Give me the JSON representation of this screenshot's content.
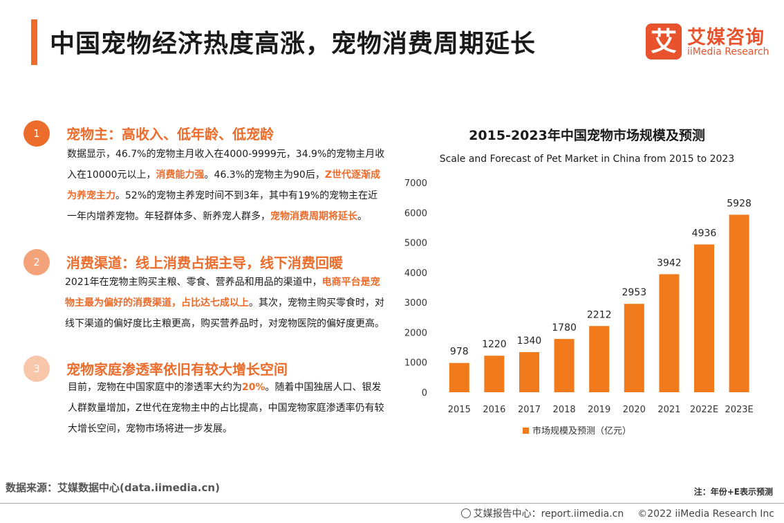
{
  "header": {
    "title": "中国宠物经济热度高涨，宠物消费周期延长"
  },
  "logo": {
    "icon_char": "艾",
    "cn": "艾媒咨询",
    "en": "iiMedia Research"
  },
  "sections": [
    {
      "num": "1",
      "title": "宠物主：高收入、低年龄、低宠龄",
      "segments": [
        {
          "t": "数据显示，46.7%的宠物主月收入在4000-9999元，34.9%的宠物主月收入在10000元以上，",
          "hl": false
        },
        {
          "t": "消费能力强",
          "hl": true
        },
        {
          "t": "。46.3%的宠物主为90后，",
          "hl": false
        },
        {
          "t": "Z世代逐渐成为养宠主力",
          "hl": true
        },
        {
          "t": "。52%的宠物主养宠时间不到3年，其中有19%的宠物主在近一年内增养宠物。年轻群体多、新养宠人群多，",
          "hl": false
        },
        {
          "t": "宠物消费周期将延长",
          "hl": true
        },
        {
          "t": "。",
          "hl": false
        }
      ]
    },
    {
      "num": "2",
      "title": "消费渠道：线上消费占据主导，线下消费回暖",
      "segments": [
        {
          "t": "2021年在宠物主购买主粮、零食、营养品和用品的渠道中，",
          "hl": false
        },
        {
          "t": "电商平台是宠物主最为偏好的消费渠道，占比达七成以上",
          "hl": true
        },
        {
          "t": "。其次，宠物主购买零食时，对线下渠道的偏好度比主粮更高，购买营养品时，对宠物医院的偏好度更高。",
          "hl": false
        }
      ]
    },
    {
      "num": "3",
      "title": "宠物家庭渗透率依旧有较大增长空间",
      "segments": [
        {
          "t": "目前，宠物在中国家庭中的渗透率大约为",
          "hl": false
        },
        {
          "t": "20%",
          "hl": true
        },
        {
          "t": "。随着中国独居人口、银发人群数量增加，Z世代在宠物主中的占比提高，中国宠物家庭渗透率仍有较大增长空间，宠物市场将进一步发展。",
          "hl": false
        }
      ]
    }
  ],
  "colors": {
    "accent": "#ec6c2c",
    "circle1": "#ec6c2c",
    "circle2": "#f3a27a",
    "circle3": "#f8c6a8",
    "bar": "#f07a1c"
  },
  "chart_data": {
    "type": "bar",
    "title": "2015-2023年中国宠物市场规模及预测",
    "subtitle": "Scale and Forecast of Pet Market in China from 2015 to 2023",
    "categories": [
      "2015",
      "2016",
      "2017",
      "2018",
      "2019",
      "2020",
      "2021",
      "2022E",
      "2023E"
    ],
    "series": [
      {
        "name": "市场规模及预测（亿元）",
        "values": [
          978,
          1220,
          1340,
          1780,
          2212,
          2953,
          3942,
          4936,
          5928
        ]
      }
    ],
    "ylim": [
      0,
      7000
    ],
    "yticks": [
      0,
      1000,
      2000,
      3000,
      4000,
      5000,
      6000,
      7000
    ],
    "grid": false,
    "legend": "bottom-center"
  },
  "footer": {
    "source": "数据来源：艾媒数据中心(data.iimedia.cn)",
    "note": "注：年份+E表示预测",
    "report_center": "艾媒报告中心：report.iimedia.cn",
    "copyright": "©2022  iiMedia Research  Inc"
  }
}
